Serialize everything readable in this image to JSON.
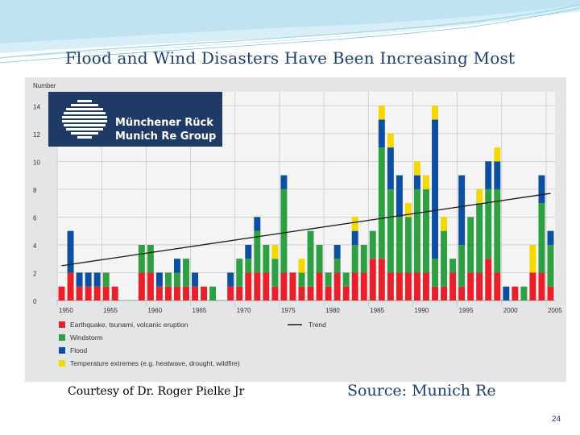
{
  "slide": {
    "title": "Flood and Wind Disasters Have Been Increasing Most",
    "credit": "Courtesy of Dr. Roger Pielke Jr",
    "source": "Source: Munich Re",
    "page_number": "24"
  },
  "logo": {
    "line1": "Münchener Rück",
    "line2": "Munich Re Group"
  },
  "chart_data": {
    "type": "bar",
    "stacked": true,
    "ylabel": "Number",
    "ylim": [
      0,
      15
    ],
    "yticks": [
      0,
      2,
      4,
      6,
      8,
      10,
      12,
      14
    ],
    "xticks": [
      "1950",
      "1955",
      "1960",
      "1965",
      "1970",
      "1975",
      "1980",
      "1985",
      "1990",
      "1995",
      "2000",
      "2005"
    ],
    "grid": true,
    "legend_placement": "bottom",
    "x": [
      1950,
      1951,
      1952,
      1953,
      1954,
      1955,
      1956,
      1957,
      1958,
      1959,
      1960,
      1961,
      1962,
      1963,
      1964,
      1965,
      1966,
      1967,
      1968,
      1969,
      1970,
      1971,
      1972,
      1973,
      1974,
      1975,
      1976,
      1977,
      1978,
      1979,
      1980,
      1981,
      1982,
      1983,
      1984,
      1985,
      1986,
      1987,
      1988,
      1989,
      1990,
      1991,
      1992,
      1993,
      1994,
      1995,
      1996,
      1997,
      1998,
      1999,
      2000,
      2001,
      2002,
      2003,
      2004,
      2005
    ],
    "series": [
      {
        "name": "Earthquake, tsunami, volcanic eruption",
        "color": "#e8202a",
        "values": [
          1,
          2,
          1,
          1,
          1,
          1,
          1,
          0,
          0,
          2,
          2,
          1,
          1,
          1,
          1,
          1,
          1,
          0,
          0,
          1,
          1,
          2,
          2,
          2,
          1,
          2,
          2,
          1,
          1,
          2,
          1,
          2,
          1,
          2,
          2,
          3,
          3,
          2,
          2,
          2,
          2,
          2,
          1,
          1,
          2,
          1,
          2,
          2,
          3,
          2,
          0,
          1,
          0,
          2,
          2,
          1
        ]
      },
      {
        "name": "Windstorm",
        "color": "#2ea043",
        "values": [
          0,
          0,
          0,
          0,
          0,
          1,
          0,
          0,
          0,
          2,
          2,
          0,
          1,
          1,
          2,
          0,
          0,
          1,
          0,
          0,
          2,
          1,
          3,
          2,
          2,
          6,
          0,
          1,
          4,
          2,
          1,
          1,
          1,
          2,
          2,
          2,
          8,
          6,
          4,
          4,
          6,
          6,
          2,
          4,
          1,
          3,
          4,
          5,
          5,
          6,
          0,
          0,
          1,
          0,
          5,
          3
        ]
      },
      {
        "name": "Flood",
        "color": "#0b4ea2",
        "values": [
          0,
          3,
          1,
          1,
          1,
          0,
          0,
          0,
          0,
          0,
          0,
          1,
          0,
          1,
          0,
          1,
          0,
          0,
          0,
          1,
          0,
          1,
          1,
          0,
          0,
          1,
          0,
          0,
          0,
          0,
          0,
          1,
          0,
          1,
          0,
          0,
          2,
          3,
          3,
          0,
          1,
          0,
          10,
          0,
          0,
          5,
          0,
          0,
          2,
          2,
          1,
          0,
          0,
          0,
          2,
          1
        ]
      },
      {
        "name": "Temperature extremes (e.g. heatwave, drought, wildfire)",
        "color": "#f5d800",
        "values": [
          0,
          0,
          0,
          0,
          0,
          0,
          0,
          0,
          0,
          0,
          0,
          0,
          0,
          0,
          0,
          0,
          0,
          0,
          0,
          0,
          0,
          0,
          0,
          0,
          1,
          0,
          0,
          1,
          0,
          0,
          0,
          0,
          0,
          1,
          0,
          0,
          1,
          1,
          0,
          1,
          1,
          1,
          1,
          1,
          0,
          0,
          0,
          1,
          0,
          1,
          0,
          0,
          0,
          2,
          0,
          0
        ]
      }
    ],
    "trend": {
      "name": "Trend",
      "color": "#1a1a1a",
      "start": [
        1950,
        2.5
      ],
      "end": [
        2005,
        7.7
      ]
    }
  }
}
